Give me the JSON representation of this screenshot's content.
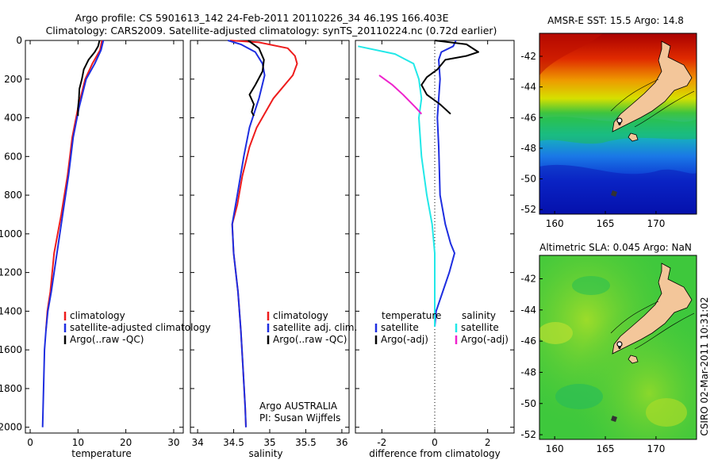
{
  "title_line1": "Argo profile: CS 5901613_142 24-Feb-2011 20110226_34 46.19S 166.403E",
  "title_line2": "Climatology: CARS2009. Satellite-adjusted climatology: synTS_20110224.nc (0.72d earlier)",
  "credit": "CSIRO 02-Mar-2011 10:31:02",
  "colors": {
    "climatology": "#ee1c1c",
    "satellite_adjusted": "#1e2ee0",
    "argo": "#000000",
    "sat_salinity_diff": "#22e8e8",
    "argo_salinity_diff": "#ee22cc"
  },
  "chart_data": [
    {
      "type": "line",
      "id": "temperature_profile",
      "xlabel": "temperature",
      "xlim": [
        -1,
        32
      ],
      "ylim": [
        2030,
        0
      ],
      "xticks": [
        0,
        10,
        20,
        30
      ],
      "yticks": [
        0,
        200,
        400,
        600,
        800,
        1000,
        1200,
        1400,
        1600,
        1800,
        2000
      ],
      "legend": [
        "climatology",
        "satellite-adjusted climatology",
        "Argo(..raw -QC)"
      ],
      "series": [
        {
          "name": "climatology",
          "color": "#ee1c1c",
          "points": [
            [
              15,
              0
            ],
            [
              14.6,
              50
            ],
            [
              13,
              120
            ],
            [
              11.5,
              200
            ],
            [
              10,
              350
            ],
            [
              8.8,
              500
            ],
            [
              7.8,
              700
            ],
            [
              6.5,
              900
            ],
            [
              5,
              1100
            ],
            [
              4.2,
              1300
            ],
            [
              3.6,
              1400
            ],
            [
              3.3,
              1500
            ]
          ]
        },
        {
          "name": "satellite-adjusted climatology",
          "color": "#1e2ee0",
          "points": [
            [
              15.3,
              0
            ],
            [
              14.8,
              50
            ],
            [
              13.5,
              120
            ],
            [
              11.7,
              200
            ],
            [
              10.2,
              350
            ],
            [
              9,
              500
            ],
            [
              8,
              700
            ],
            [
              6.8,
              900
            ],
            [
              5.6,
              1100
            ],
            [
              4.4,
              1300
            ],
            [
              3.7,
              1400
            ],
            [
              3.3,
              1500
            ],
            [
              3,
              1600
            ],
            [
              2.8,
              1800
            ],
            [
              2.7,
              1900
            ],
            [
              2.6,
              2000
            ]
          ]
        },
        {
          "name": "Argo(..raw -QC)",
          "color": "#000000",
          "points": [
            [
              14.5,
              0
            ],
            [
              14.2,
              30
            ],
            [
              13.5,
              60
            ],
            [
              12.2,
              100
            ],
            [
              11.2,
              150
            ],
            [
              10.8,
              200
            ],
            [
              10.3,
              250
            ],
            [
              10.2,
              300
            ],
            [
              10,
              350
            ],
            [
              10,
              390
            ]
          ]
        }
      ]
    },
    {
      "type": "line",
      "id": "salinity_profile",
      "xlabel": "salinity",
      "xlim": [
        33.9,
        36.1
      ],
      "ylim": [
        2030,
        0
      ],
      "xticks": [
        34,
        34.5,
        35,
        35.5,
        36
      ],
      "legend": [
        "climatology",
        "satellite adj. clim.",
        "Argo(..raw -QC)"
      ],
      "annotation": [
        "Argo AUSTRALIA",
        "PI: Susan Wijffels"
      ],
      "series": [
        {
          "name": "climatology",
          "color": "#ee1c1c",
          "points": [
            [
              34.45,
              0
            ],
            [
              34.85,
              10
            ],
            [
              35.25,
              40
            ],
            [
              35.35,
              80
            ],
            [
              35.38,
              120
            ],
            [
              35.32,
              180
            ],
            [
              35.05,
              300
            ],
            [
              34.82,
              450
            ],
            [
              34.72,
              550
            ],
            [
              34.62,
              700
            ],
            [
              34.55,
              850
            ],
            [
              34.48,
              950
            ],
            [
              34.5,
              1100
            ],
            [
              34.56,
              1300
            ],
            [
              34.6,
              1500
            ],
            [
              34.63,
              1700
            ],
            [
              34.66,
              1900
            ],
            [
              34.67,
              2000
            ]
          ]
        },
        {
          "name": "satellite adj. clim.",
          "color": "#1e2ee0",
          "points": [
            [
              34.42,
              0
            ],
            [
              34.6,
              20
            ],
            [
              34.8,
              60
            ],
            [
              34.9,
              120
            ],
            [
              34.93,
              180
            ],
            [
              34.85,
              300
            ],
            [
              34.72,
              450
            ],
            [
              34.64,
              600
            ],
            [
              34.55,
              800
            ],
            [
              34.48,
              950
            ],
            [
              34.5,
              1100
            ],
            [
              34.56,
              1300
            ],
            [
              34.6,
              1500
            ],
            [
              34.63,
              1700
            ],
            [
              34.66,
              1900
            ],
            [
              34.67,
              2000
            ]
          ]
        },
        {
          "name": "Argo(..raw -QC)",
          "color": "#000000",
          "points": [
            [
              34.7,
              0
            ],
            [
              34.85,
              40
            ],
            [
              34.92,
              100
            ],
            [
              34.9,
              160
            ],
            [
              34.8,
              230
            ],
            [
              34.72,
              280
            ],
            [
              34.78,
              330
            ],
            [
              34.75,
              370
            ],
            [
              34.78,
              390
            ]
          ]
        }
      ]
    },
    {
      "type": "line",
      "id": "difference_profile",
      "xlabel": "difference from climatology",
      "xlim": [
        -3,
        3
      ],
      "ylim": [
        2030,
        0
      ],
      "xticks": [
        -2,
        0,
        2
      ],
      "legend_headers": [
        "temperature",
        "salinity"
      ],
      "legend": [
        "satellite",
        "Argo(-adj)",
        "satellite",
        "Argo(-adj)"
      ],
      "series": [
        {
          "name": "satellite",
          "quantity": "temperature",
          "color": "#1e2ee0",
          "points": [
            [
              0.8,
              0
            ],
            [
              0.7,
              30
            ],
            [
              0.25,
              60
            ],
            [
              0.15,
              100
            ],
            [
              0.2,
              200
            ],
            [
              0.15,
              300
            ],
            [
              0.1,
              400
            ],
            [
              0.15,
              550
            ],
            [
              0.2,
              800
            ],
            [
              0.4,
              950
            ],
            [
              0.6,
              1050
            ],
            [
              0.75,
              1100
            ],
            [
              0.55,
              1200
            ],
            [
              0.3,
              1300
            ],
            [
              0.05,
              1400
            ],
            [
              0,
              1480
            ]
          ]
        },
        {
          "name": "Argo(-adj)",
          "quantity": "temperature",
          "color": "#000000",
          "points": [
            [
              0,
              0
            ],
            [
              1.2,
              20
            ],
            [
              1.65,
              60
            ],
            [
              1.2,
              80
            ],
            [
              0.4,
              100
            ],
            [
              0.1,
              150
            ],
            [
              -0.3,
              190
            ],
            [
              -0.5,
              230
            ],
            [
              -0.3,
              280
            ],
            [
              0.2,
              330
            ],
            [
              0.6,
              380
            ]
          ]
        },
        {
          "name": "satellite",
          "quantity": "salinity",
          "color": "#22e8e8",
          "points": [
            [
              -2.9,
              30
            ],
            [
              -1.5,
              70
            ],
            [
              -0.8,
              120
            ],
            [
              -0.6,
              200
            ],
            [
              -0.5,
              300
            ],
            [
              -0.6,
              400
            ],
            [
              -0.5,
              600
            ],
            [
              -0.3,
              800
            ],
            [
              -0.1,
              950
            ],
            [
              0,
              1100
            ],
            [
              0,
              1300
            ],
            [
              0,
              1480
            ]
          ]
        },
        {
          "name": "Argo(-adj)",
          "quantity": "salinity",
          "color": "#ee22cc",
          "points": [
            [
              -2.1,
              180
            ],
            [
              -1.6,
              230
            ],
            [
              -1.2,
              280
            ],
            [
              -0.7,
              350
            ],
            [
              -0.5,
              380
            ]
          ]
        }
      ]
    },
    {
      "type": "heatmap",
      "id": "sst_map",
      "title": "AMSR-E SST: 15.5 Argo: 14.8",
      "xlim": [
        158.5,
        174
      ],
      "ylim": [
        -52.3,
        -40.5
      ],
      "xticks": [
        160,
        165,
        170
      ],
      "yticks": [
        -42,
        -44,
        -46,
        -48,
        -50,
        -52
      ],
      "argo_position": [
        166.403,
        -46.19
      ]
    },
    {
      "type": "heatmap",
      "id": "sla_map",
      "title": "Altimetric SLA: 0.045 Argo: NaN",
      "xlim": [
        158.5,
        174
      ],
      "ylim": [
        -52.3,
        -40.5
      ],
      "xticks": [
        160,
        165,
        170
      ],
      "yticks": [
        -42,
        -44,
        -46,
        -48,
        -50,
        -52
      ],
      "argo_position": [
        166.403,
        -46.19
      ]
    }
  ]
}
